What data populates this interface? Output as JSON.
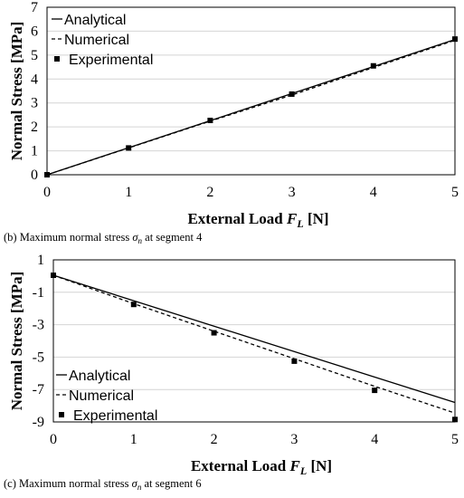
{
  "chart_data": [
    {
      "type": "line",
      "ylabel": "Normal Stress [MPa]",
      "xlabel": {
        "main": "External Load ",
        "var": "F",
        "sub": "L",
        "unit": " [N]"
      },
      "xlim": [
        0,
        5
      ],
      "ylim": [
        0,
        7
      ],
      "x_ticks": [
        "0",
        "1",
        "2",
        "3",
        "4",
        "5"
      ],
      "y_ticks": [
        "0",
        "1",
        "2",
        "3",
        "4",
        "5",
        "6",
        "7"
      ],
      "grid": true,
      "legend_position": "top-left",
      "series": [
        {
          "name": "Analytical",
          "style": "solid",
          "x": [
            0,
            5
          ],
          "y": [
            0,
            5.65
          ]
        },
        {
          "name": "Numerical",
          "style": "dashed",
          "x": [
            0,
            1,
            2,
            3,
            4,
            5
          ],
          "y": [
            0,
            1.12,
            2.24,
            3.33,
            4.48,
            5.62
          ]
        },
        {
          "name": "Experimental",
          "style": "marker",
          "x": [
            0,
            1,
            2,
            3,
            4,
            5
          ],
          "y": [
            0,
            1.12,
            2.27,
            3.37,
            4.55,
            5.67
          ]
        }
      ],
      "caption": {
        "prefix": "(b) Maximum normal stress ",
        "sym": "σ",
        "sub": "n",
        "suffix": " at segment 4"
      }
    },
    {
      "type": "line",
      "ylabel": "Normal Stress [MPa]",
      "xlabel": {
        "main": "External Load ",
        "var": "F",
        "sub": "L",
        "unit": " [N]"
      },
      "xlim": [
        0,
        5
      ],
      "ylim": [
        -9,
        1
      ],
      "x_ticks": [
        "0",
        "1",
        "2",
        "3",
        "4",
        "5"
      ],
      "y_ticks": [
        "1",
        "-1",
        "-3",
        "-5",
        "-7",
        "-9"
      ],
      "grid": true,
      "legend_position": "bottom-left",
      "series": [
        {
          "name": "Analytical",
          "style": "solid",
          "x": [
            0,
            5
          ],
          "y": [
            0.05,
            -7.8
          ]
        },
        {
          "name": "Numerical",
          "style": "dashed",
          "x": [
            0,
            1,
            2,
            3,
            4,
            5
          ],
          "y": [
            0.05,
            -1.7,
            -3.4,
            -5.1,
            -6.8,
            -8.45
          ]
        },
        {
          "name": "Experimental",
          "style": "marker",
          "x": [
            0,
            1,
            2,
            3,
            4,
            5
          ],
          "y": [
            0.05,
            -1.75,
            -3.5,
            -5.25,
            -7.05,
            -8.85
          ]
        }
      ],
      "caption": {
        "prefix": "(c) Maximum normal stress ",
        "sym": "σ",
        "sub": "n",
        "suffix": " at segment 6"
      }
    }
  ]
}
